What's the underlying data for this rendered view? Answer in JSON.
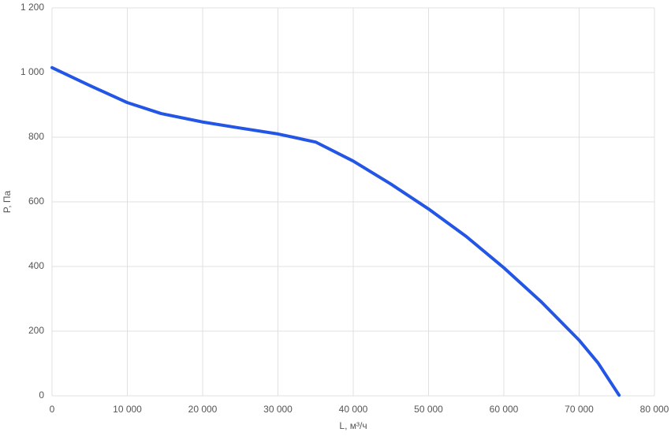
{
  "chart_data": {
    "type": "line",
    "x_label": "L, м³/ч",
    "y_label": "P, Па",
    "x": [
      0,
      5000,
      10000,
      14500,
      20000,
      24500,
      30000,
      35000,
      40000,
      45000,
      50000,
      55000,
      60000,
      65000,
      70000,
      72500,
      75300
    ],
    "series": [
      {
        "name": "P",
        "color": "#2456e6",
        "values": [
          1015,
          960,
          907,
          873,
          847,
          830,
          810,
          785,
          726,
          655,
          578,
          493,
          396,
          290,
          172,
          102,
          2
        ]
      }
    ],
    "xlim": [
      0,
      80000
    ],
    "xticks": [
      0,
      {
        "value": 10000,
        "label": "10 000"
      },
      {
        "value": 20000,
        "label": "20 000"
      },
      {
        "value": 30000,
        "label": "30 000"
      },
      {
        "value": 40000,
        "label": "40 000"
      },
      {
        "value": 50000,
        "label": "50 000"
      },
      {
        "value": 60000,
        "label": "60 000"
      },
      {
        "value": 70000,
        "label": "70 000"
      },
      {
        "value": 80000,
        "label": "80 000"
      }
    ],
    "ylim": [
      0,
      1200
    ],
    "yticks": [
      0,
      200,
      400,
      600,
      800,
      {
        "value": 1000,
        "label": "1 000"
      },
      {
        "value": 1200,
        "label": "1 200"
      }
    ],
    "grid": true
  }
}
